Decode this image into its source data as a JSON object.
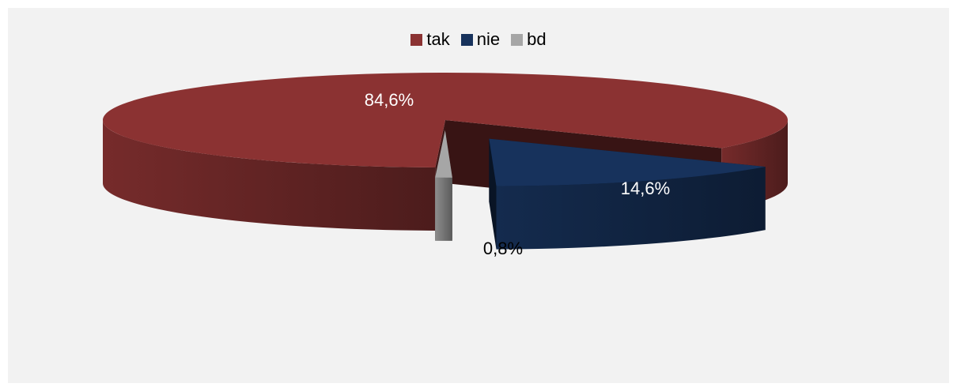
{
  "chart_data": {
    "type": "pie",
    "style": "3d-exploded",
    "title": "",
    "legend_position": "top",
    "series": [
      {
        "name": "tak",
        "value": 84.6,
        "label": "84,6%",
        "color": "#8b3232",
        "label_color": "#ffffff"
      },
      {
        "name": "nie",
        "value": 14.6,
        "label": "14,6%",
        "color": "#17325c",
        "label_color": "#ffffff"
      },
      {
        "name": "bd",
        "value": 0.8,
        "label": "0,8%",
        "color": "#a6a6a6",
        "label_color": "#000000"
      }
    ]
  }
}
